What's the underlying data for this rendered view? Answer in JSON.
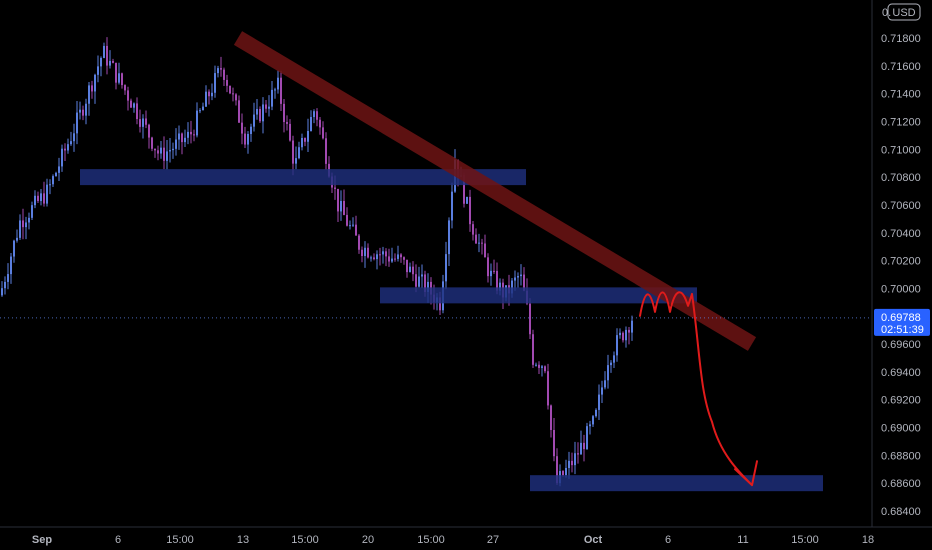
{
  "chart_data": {
    "type": "candlestick",
    "x_tick_labels": [
      "Sep",
      "6",
      "15:00",
      "13",
      "15:00",
      "20",
      "15:00",
      "27",
      "Oct",
      "6",
      "11",
      "15:00",
      "18"
    ],
    "y_tick_labels": [
      "0.71800",
      "0.71600",
      "0.71400",
      "0.71200",
      "0.71000",
      "0.70800",
      "0.70600",
      "0.70400",
      "0.70200",
      "0.70000",
      "0.69600",
      "0.69400",
      "0.69200",
      "0.69000",
      "0.68800",
      "0.68600",
      "0.68400"
    ],
    "y_tick_values": [
      0.718,
      0.716,
      0.714,
      0.712,
      0.71,
      0.708,
      0.706,
      0.704,
      0.702,
      0.7,
      0.696,
      0.694,
      0.692,
      0.69,
      0.688,
      0.686,
      0.684
    ],
    "currency": "USD",
    "currency_top": "0.",
    "ylim": [
      0.6832,
      0.7204
    ],
    "current_price": {
      "value": "0.69788",
      "countdown": "02:51:39",
      "level": 0.69788
    },
    "colors": {
      "up": "#5b7fe0",
      "down": "#a24ab1",
      "support": "#1e2f7e",
      "trendline": "#6e1414",
      "projection": "#e01b1b",
      "price_label_bg": "#2962ff"
    },
    "key_prices": {
      "start": 0.6995,
      "sep_high": 0.717,
      "mid_high": 0.7094,
      "late_low": 0.6985,
      "bottom": 0.6859,
      "last": 0.69788
    },
    "support_zones": [
      {
        "level": 0.708,
        "label": ""
      },
      {
        "level": 0.6995,
        "label": ""
      },
      {
        "level": 0.686,
        "label": ""
      }
    ],
    "trendline": {
      "from": 0.718,
      "to": 0.696
    },
    "projection": {
      "peak": 0.69975,
      "target": 0.686
    }
  }
}
